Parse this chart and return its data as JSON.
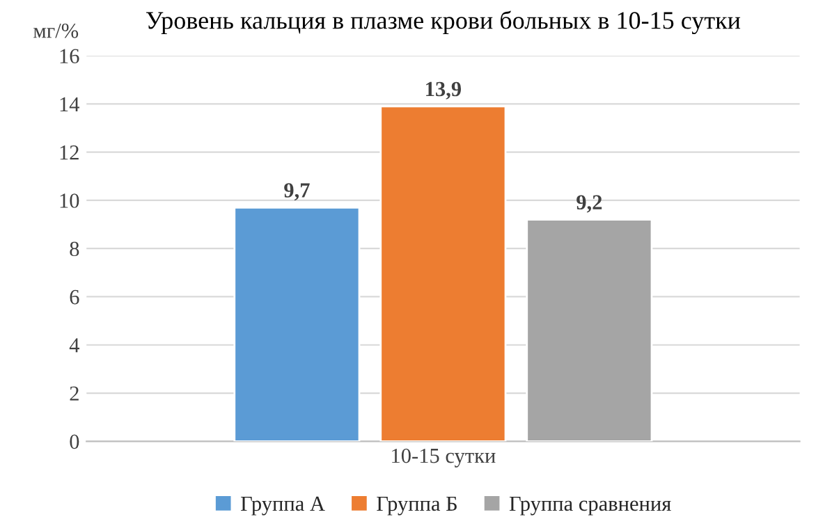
{
  "chart_data": {
    "type": "bar",
    "title": "Уровень кальция в плазме крови больных в 10-15 сутки",
    "ylabel": "мг/%",
    "categories": [
      "10-15 сутки"
    ],
    "series": [
      {
        "name": "Группа А",
        "color": "#5b9bd5",
        "values": [
          9.7
        ],
        "value_labels": [
          "9,7"
        ]
      },
      {
        "name": "Группа Б",
        "color": "#ed7d31",
        "values": [
          13.9
        ],
        "value_labels": [
          "13,9"
        ]
      },
      {
        "name": "Группа сравнения",
        "color": "#a5a5a5",
        "values": [
          9.2
        ],
        "value_labels": [
          "9,2"
        ]
      }
    ],
    "ylim": [
      0,
      16
    ],
    "yticks": [
      0,
      2,
      4,
      6,
      8,
      10,
      12,
      14,
      16
    ],
    "grid": "y",
    "legend": "bottom"
  }
}
